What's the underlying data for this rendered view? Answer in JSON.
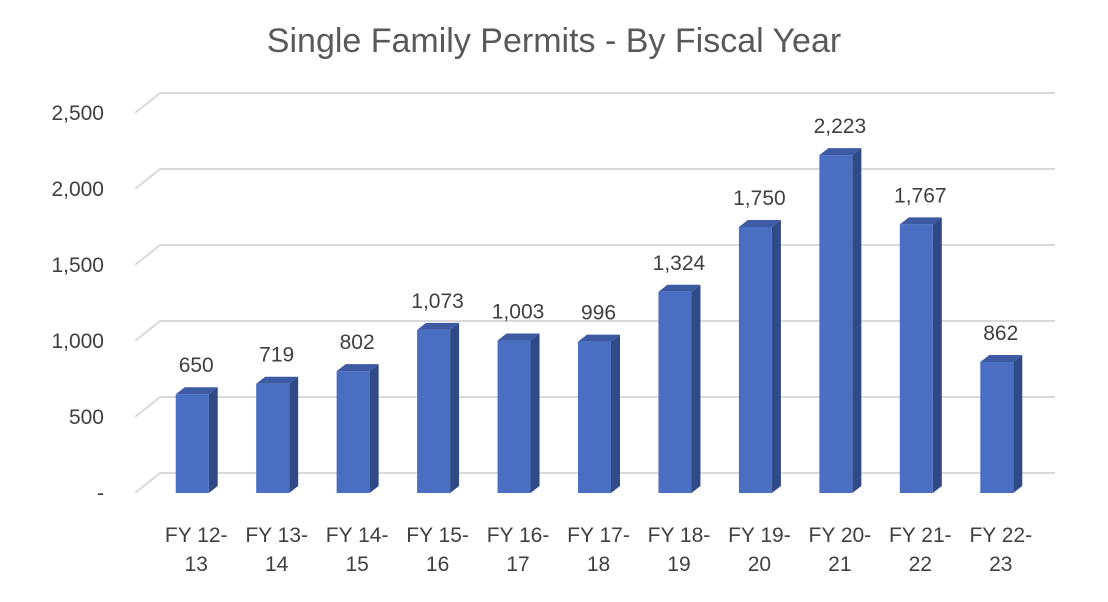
{
  "chart_data": {
    "type": "bar",
    "title": "Single Family Permits - By Fiscal Year",
    "xlabel": "",
    "ylabel": "",
    "categories": [
      [
        "FY 12-",
        "13"
      ],
      [
        "FY 13-",
        "14"
      ],
      [
        "FY 14-",
        "15"
      ],
      [
        "FY 15-",
        "16"
      ],
      [
        "FY 16-",
        "17"
      ],
      [
        "FY 17-",
        "18"
      ],
      [
        "FY 18-",
        "19"
      ],
      [
        "FY 19-",
        "20"
      ],
      [
        "FY 20-",
        "21"
      ],
      [
        "FY 21-",
        "22"
      ],
      [
        "FY 22-",
        "23"
      ]
    ],
    "values": [
      650,
      719,
      802,
      1073,
      1003,
      996,
      1324,
      1750,
      2223,
      1767,
      862
    ],
    "data_labels": [
      "650",
      "719",
      "802",
      "1,073",
      "1,003",
      "996",
      "1,324",
      "1,750",
      "2,223",
      "1,767",
      "862"
    ],
    "ylim": [
      0,
      2500
    ],
    "yticks": [
      0,
      500,
      1000,
      1500,
      2000,
      2500
    ],
    "ytick_labels": [
      "-",
      "500",
      "1,000",
      "1,500",
      "2,000",
      "2,500"
    ],
    "grid": true,
    "legend": "none",
    "colors": {
      "bar_front": "#4a6ec2",
      "bar_side": "#2f4a87",
      "bar_top": "#3d5aa3",
      "grid": "#d9d9d9",
      "text": "#404040",
      "title": "#595959"
    }
  }
}
